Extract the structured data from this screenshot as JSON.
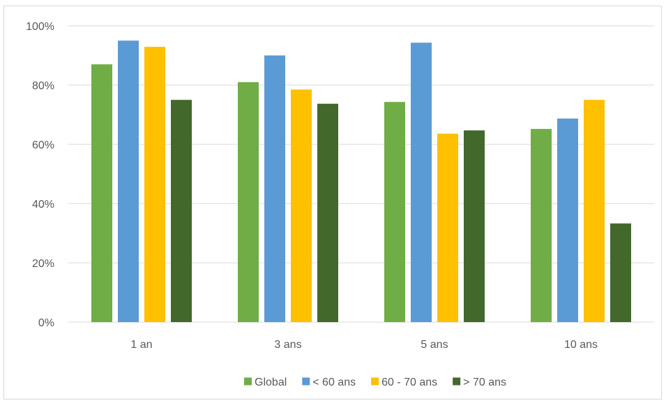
{
  "chart_data": {
    "type": "bar",
    "categories": [
      "1 an",
      "3 ans",
      "5 ans",
      "10 ans"
    ],
    "series": [
      {
        "name": "Global",
        "color": "#70ad47",
        "values": [
          87,
          81,
          74.3,
          65.2
        ]
      },
      {
        "name": "< 60 ans",
        "color": "#5b9bd5",
        "values": [
          95,
          90,
          94.3,
          68.7
        ]
      },
      {
        "name": "60 - 70 ans",
        "color": "#ffc000",
        "values": [
          92.9,
          78.5,
          63.6,
          75
        ]
      },
      {
        "name": "> 70 ans",
        "color": "#43682b",
        "values": [
          75,
          73.7,
          64.7,
          33.3
        ]
      }
    ],
    "ylim": [
      0,
      100
    ],
    "yticks": [
      "0%",
      "20%",
      "40%",
      "60%",
      "80%",
      "100%"
    ],
    "grid": true,
    "legend_position": "bottom"
  }
}
